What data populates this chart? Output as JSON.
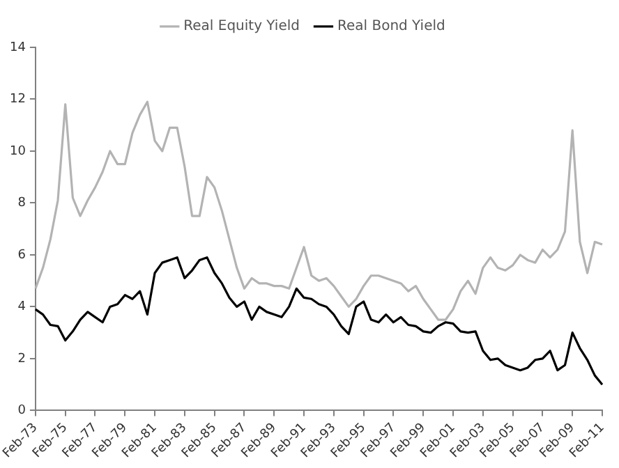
{
  "chart_data": {
    "type": "line",
    "categories": [
      "Feb-73",
      null,
      null,
      null,
      "Feb-75",
      null,
      null,
      null,
      "Feb-77",
      null,
      null,
      null,
      "Feb-79",
      null,
      null,
      null,
      "Feb-81",
      null,
      null,
      null,
      "Feb-83",
      null,
      null,
      null,
      "Feb-85",
      null,
      null,
      null,
      "Feb-87",
      null,
      null,
      null,
      "Feb-89",
      null,
      null,
      null,
      "Feb-91",
      null,
      null,
      null,
      "Feb-93",
      null,
      null,
      null,
      "Feb-95",
      null,
      null,
      null,
      "Feb-97",
      null,
      null,
      null,
      "Feb-99",
      null,
      null,
      null,
      "Feb-01",
      null,
      null,
      null,
      "Feb-03",
      null,
      null,
      null,
      "Feb-05",
      null,
      null,
      null,
      "Feb-07",
      null,
      null,
      null,
      "Feb-09",
      null,
      null,
      null,
      "Feb-11"
    ],
    "series": [
      {
        "name": "Real Equity Yield",
        "color": "#b3b3b3",
        "values": [
          4.7,
          5.5,
          6.6,
          8.1,
          11.8,
          8.2,
          7.5,
          8.1,
          8.6,
          9.2,
          10.0,
          9.5,
          9.5,
          10.7,
          11.4,
          11.9,
          10.4,
          10.0,
          10.9,
          10.9,
          9.4,
          7.5,
          7.5,
          9.0,
          8.6,
          7.7,
          6.6,
          5.5,
          4.7,
          5.1,
          4.9,
          4.9,
          4.8,
          4.8,
          4.7,
          5.5,
          6.3,
          5.2,
          5.0,
          5.1,
          4.8,
          4.4,
          4.0,
          4.3,
          4.8,
          5.2,
          5.2,
          5.1,
          5.0,
          4.9,
          4.6,
          4.8,
          4.3,
          3.9,
          3.5,
          3.5,
          3.9,
          4.6,
          5.0,
          4.5,
          5.5,
          5.9,
          5.5,
          5.4,
          5.6,
          6.0,
          5.8,
          5.7,
          6.2,
          5.9,
          6.2,
          6.9,
          10.8,
          6.5,
          5.3,
          6.5,
          6.4
        ]
      },
      {
        "name": "Real Bond Yield",
        "color": "#000000",
        "values": [
          3.9,
          3.7,
          3.3,
          3.25,
          2.7,
          3.05,
          3.5,
          3.8,
          3.6,
          3.4,
          4.0,
          4.1,
          4.45,
          4.3,
          4.6,
          3.7,
          5.3,
          5.7,
          5.8,
          5.9,
          5.1,
          5.4,
          5.8,
          5.9,
          5.3,
          4.9,
          4.35,
          4.0,
          4.2,
          3.5,
          4.0,
          3.8,
          3.7,
          3.6,
          4.0,
          4.7,
          4.35,
          4.3,
          4.1,
          4.0,
          3.7,
          3.25,
          2.95,
          4.0,
          4.2,
          3.5,
          3.4,
          3.7,
          3.4,
          3.6,
          3.3,
          3.25,
          3.05,
          3.0,
          3.25,
          3.4,
          3.35,
          3.05,
          3.0,
          3.05,
          2.3,
          1.95,
          2.0,
          1.75,
          1.65,
          1.55,
          1.65,
          1.95,
          2.0,
          2.3,
          1.55,
          1.75,
          3.0,
          2.4,
          1.95,
          1.35,
          1.0
        ]
      }
    ],
    "ylim": [
      0,
      14
    ],
    "yticks": [
      0,
      2,
      4,
      6,
      8,
      10,
      12,
      14
    ],
    "grid": false,
    "legend": "top",
    "marker": "none",
    "line_style": "solid"
  }
}
